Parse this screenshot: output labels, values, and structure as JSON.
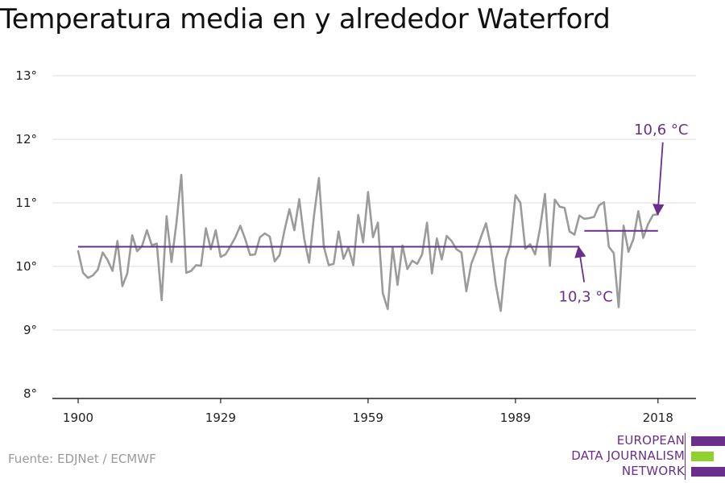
{
  "title": "Temperatura media en y alrededor Waterford",
  "source": "Fuente: EDJNet / ECMWF",
  "logo": {
    "lines": [
      "EUROPEAN",
      "DATA JOURNALISM",
      "NETWORK"
    ],
    "purple": "#6a2f8c",
    "green": "#8fd12e"
  },
  "colors": {
    "series": "#9b9b9b",
    "mean": "#6a2f8c",
    "grid": "#dddddd",
    "axis": "#222222"
  },
  "chart_data": {
    "type": "line",
    "title": "Temperatura media en y alrededor Waterford",
    "xlabel": "",
    "ylabel": "",
    "xlim": [
      1900,
      2019
    ],
    "ylim": [
      8,
      13
    ],
    "x_ticks": [
      1900,
      1929,
      1959,
      1989,
      2018
    ],
    "y_ticks": [
      {
        "value": 8,
        "label": "8°"
      },
      {
        "value": 9,
        "label": "9°"
      },
      {
        "value": 10,
        "label": "10°"
      },
      {
        "value": 11,
        "label": "11°"
      },
      {
        "value": 12,
        "label": "12°"
      },
      {
        "value": 13,
        "label": "13°"
      }
    ],
    "grid": true,
    "series": [
      {
        "x_start": 1900,
        "values": [
          10.24,
          9.9,
          9.82,
          9.86,
          9.95,
          10.22,
          10.1,
          9.93,
          10.4,
          9.69,
          9.89,
          10.49,
          10.24,
          10.32,
          10.57,
          10.33,
          10.36,
          9.47,
          10.79,
          10.07,
          10.68,
          11.44,
          9.9,
          9.93,
          10.02,
          10.01,
          10.6,
          10.27,
          10.57,
          10.15,
          10.19,
          10.32,
          10.46,
          10.64,
          10.43,
          10.18,
          10.19,
          10.46,
          10.52,
          10.47,
          10.08,
          10.18,
          10.57,
          10.9,
          10.57,
          11.06,
          10.44,
          10.06,
          10.8,
          11.39,
          10.31,
          10.02,
          10.04,
          10.55,
          10.12,
          10.3,
          10.02,
          10.81,
          10.38,
          11.17,
          10.46,
          10.69,
          9.58,
          9.33,
          10.3,
          9.71,
          10.33,
          9.96,
          10.09,
          10.04,
          10.19,
          10.69,
          9.89,
          10.44,
          10.11,
          10.48,
          10.4,
          10.27,
          10.22,
          9.61,
          10.04,
          10.24,
          10.47,
          10.68,
          10.31,
          9.71,
          9.3,
          10.11,
          10.35,
          11.12,
          11.0,
          10.28,
          10.35,
          10.19,
          10.6,
          11.14,
          10.01,
          11.05,
          10.94,
          10.92,
          10.55,
          10.5,
          10.8,
          10.75,
          10.76,
          10.78,
          10.96,
          11.01,
          10.31,
          10.21,
          9.36,
          10.64,
          10.23,
          10.43,
          10.87,
          10.45,
          10.67,
          10.81,
          10.82
        ]
      }
    ],
    "reference_lines": [
      {
        "x_from": 1900,
        "x_to": 2002,
        "y": 10.31,
        "label": "10,3 °C"
      },
      {
        "x_from": 2003,
        "x_to": 2018,
        "y": 10.56,
        "label": "10,6 °C"
      }
    ]
  }
}
